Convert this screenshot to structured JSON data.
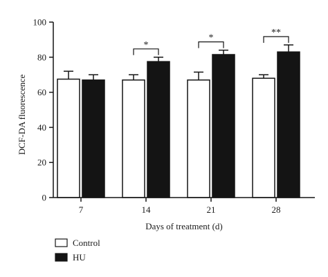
{
  "chart_data": {
    "type": "bar",
    "xlabel": "Days of treatment (d)",
    "ylabel": "DCF-DA fluorescence",
    "categories": [
      "7",
      "14",
      "21",
      "28"
    ],
    "ylim": [
      0,
      100
    ],
    "yticks": [
      0,
      20,
      40,
      60,
      80,
      100
    ],
    "series": [
      {
        "name": "Control",
        "color": "#ffffff",
        "values": [
          67.5,
          67,
          67,
          68
        ],
        "error": [
          4.5,
          3,
          4.5,
          2
        ]
      },
      {
        "name": "HU",
        "color": "#141414",
        "values": [
          67,
          77.5,
          81.5,
          83
        ],
        "error": [
          3,
          2.5,
          2.5,
          4
        ]
      }
    ],
    "significance": [
      {
        "category": "14",
        "label": "*"
      },
      {
        "category": "21",
        "label": "*"
      },
      {
        "category": "28",
        "label": "**"
      }
    ],
    "legend": {
      "position": "bottom-left",
      "entries": [
        "Control",
        "HU"
      ]
    },
    "grid": false
  }
}
